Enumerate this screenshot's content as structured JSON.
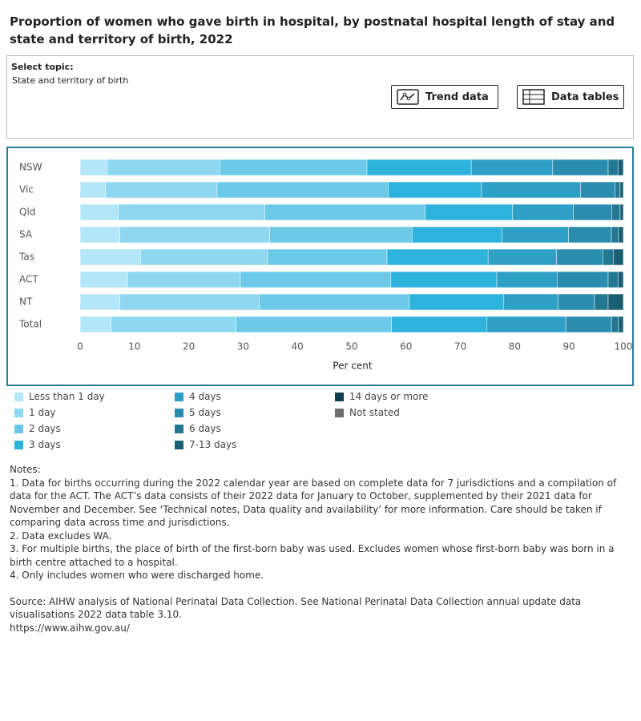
{
  "header": {
    "title": "Proportion of women who gave birth in hospital, by postnatal hospital length of stay and state and territory of birth, 2022"
  },
  "controls": {
    "label": "Select topic:",
    "selected": "State and territory of birth",
    "buttons": [
      "Trend data",
      "Data tables"
    ]
  },
  "chart_data": {
    "type": "stacked-bar-horizontal",
    "categories": [
      "NSW",
      "Vic",
      "Qld",
      "SA",
      "Tas",
      "ACT",
      "NT",
      "Total"
    ],
    "x_label": "Per cent",
    "xlim": [
      0,
      100
    ],
    "xticks": [
      0,
      10,
      20,
      30,
      40,
      50,
      60,
      70,
      80,
      90,
      100
    ],
    "grid": false,
    "series": [
      {
        "name": "Less than 1 day",
        "color": "#b3e6f7",
        "values": [
          5.0,
          4.7,
          7.0,
          7.3,
          11.1,
          8.7,
          7.3,
          5.7
        ]
      },
      {
        "name": "1 day",
        "color": "#8dd8f0",
        "values": [
          20.7,
          20.5,
          27.0,
          27.6,
          23.4,
          20.8,
          25.7,
          23.0
        ]
      },
      {
        "name": "2 days",
        "color": "#6ccae8",
        "values": [
          27.1,
          31.5,
          29.5,
          26.2,
          22.0,
          27.7,
          27.6,
          28.6
        ]
      },
      {
        "name": "3 days",
        "color": "#2eb3dc",
        "values": [
          19.2,
          17.2,
          16.1,
          16.6,
          18.6,
          19.5,
          17.4,
          17.6
        ]
      },
      {
        "name": "4 days",
        "color": "#2fa0c5",
        "values": [
          15.0,
          18.2,
          11.2,
          12.2,
          12.6,
          11.1,
          10.0,
          14.5
        ]
      },
      {
        "name": "5 days",
        "color": "#2a8db0",
        "values": [
          10.2,
          6.4,
          7.1,
          7.9,
          8.5,
          9.4,
          6.7,
          8.4
        ]
      },
      {
        "name": "6 days",
        "color": "#227891",
        "values": [
          1.8,
          0.9,
          1.5,
          1.3,
          2.0,
          1.8,
          2.5,
          1.3
        ]
      },
      {
        "name": "7-13 days",
        "color": "#1a5f74",
        "values": [
          1.0,
          0.6,
          0.6,
          0.9,
          1.8,
          1.0,
          2.8,
          0.9
        ]
      },
      {
        "name": "14 days or more",
        "color": "#0f3f50",
        "values": [
          0,
          0,
          0,
          0,
          0,
          0,
          0,
          0
        ]
      },
      {
        "name": "Not stated",
        "color": "#6d6d6d",
        "values": [
          0,
          0,
          0,
          0,
          0,
          0,
          0,
          0
        ]
      }
    ]
  },
  "notes": {
    "heading": "Notes:",
    "items": [
      "1. Data for births occurring during the 2022 calendar year are based on complete data for 7 jurisdictions and a compilation of data for the ACT. The ACT’s data consists of their 2022 data for January to October, supplemented by their 2021 data for November and December. See ‘Technical notes, Data quality and availability’ for more information. Care should be taken if comparing data across time and jurisdictions.",
      "2. Data excludes WA.",
      "3. For multiple births, the place of birth of the first-born baby was used. Excludes women whose first-born baby was born in a birth centre attached to a hospital.",
      "4. Only includes women who were discharged home."
    ]
  },
  "source": {
    "text": "Source: AIHW analysis of National Perinatal Data Collection. See National Perinatal Data Collection annual update data visualisations 2022 data table 3.10.",
    "url": "https://www.aihw.gov.au/"
  }
}
